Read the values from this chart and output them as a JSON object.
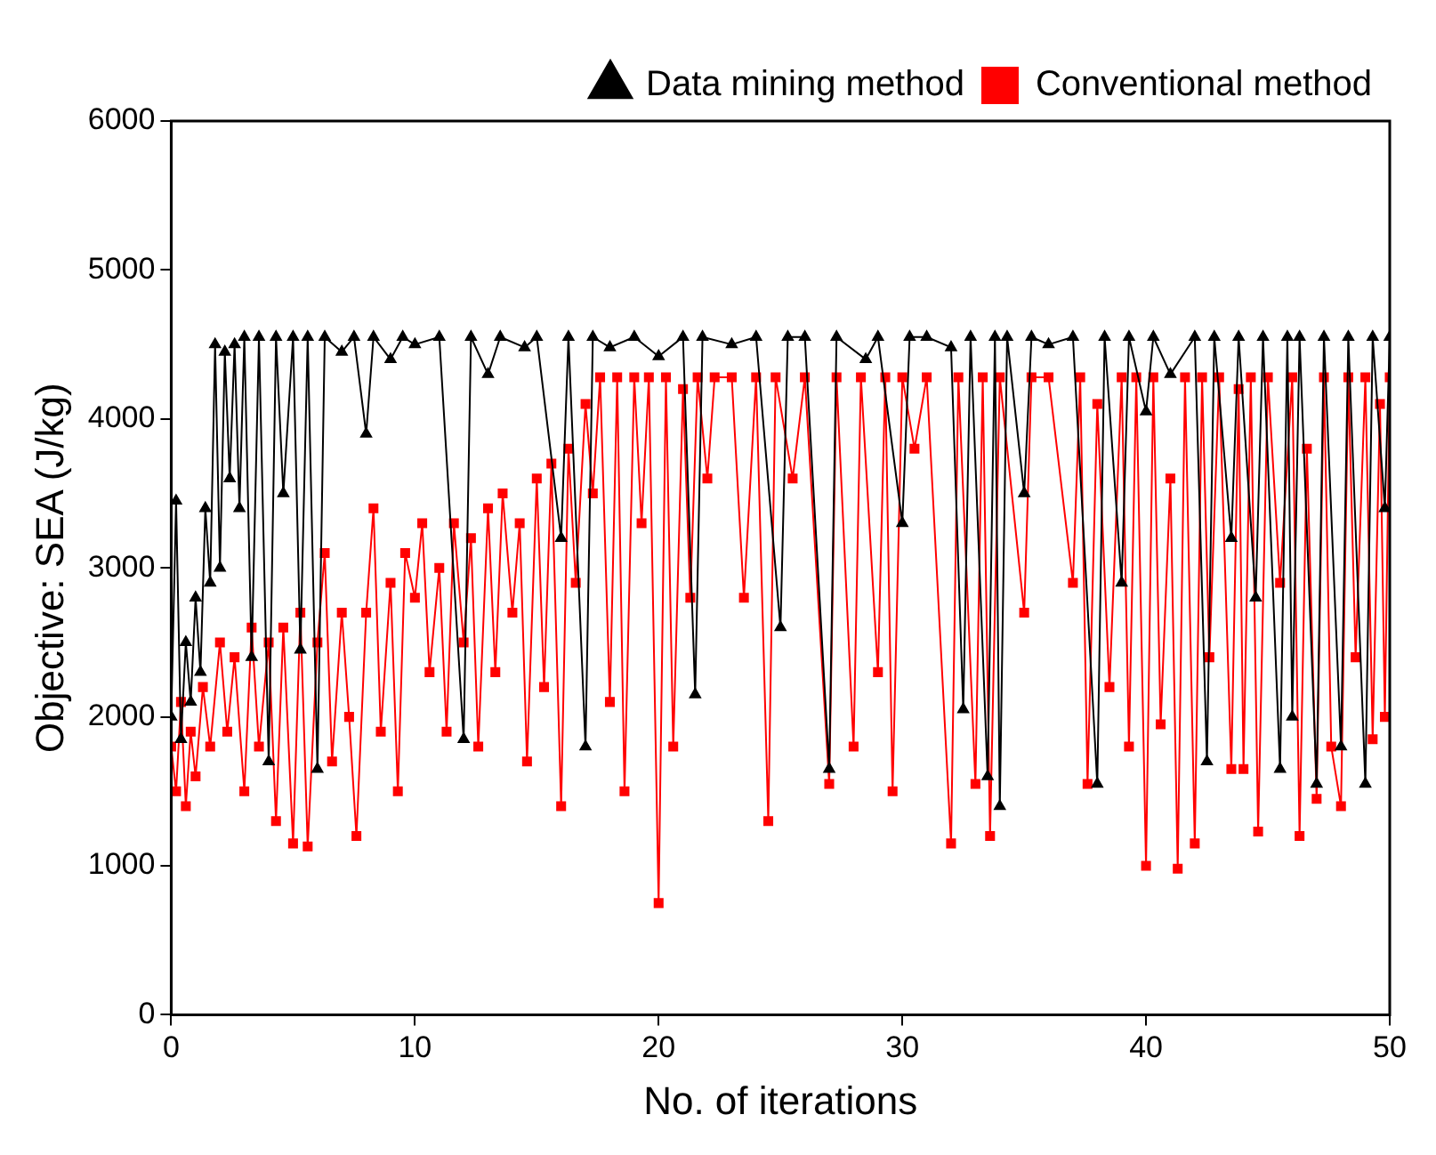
{
  "chart_data": {
    "type": "line",
    "xlabel": "No. of iterations",
    "ylabel": "Objective: SEA (J/kg)",
    "xlim": [
      0,
      50
    ],
    "xticks": [
      0,
      10,
      20,
      30,
      40,
      50
    ],
    "ylim": [
      0,
      6000
    ],
    "yticks": [
      0,
      1000,
      2000,
      3000,
      4000,
      5000,
      6000
    ],
    "grid": false,
    "legend": "top right",
    "line_style": "solid",
    "series": [
      {
        "name": "Data mining method",
        "color": "#000000",
        "marker": "triangle",
        "x": [
          0,
          0.2,
          0.4,
          0.6,
          0.8,
          1.0,
          1.2,
          1.4,
          1.6,
          1.8,
          2.0,
          2.2,
          2.4,
          2.6,
          2.8,
          3.0,
          3.3,
          3.6,
          4.0,
          4.3,
          4.6,
          5.0,
          5.3,
          5.6,
          6.0,
          6.3,
          7.0,
          7.5,
          8.0,
          8.3,
          9.0,
          9.5,
          10.0,
          11.0,
          12.0,
          12.3,
          13.0,
          13.5,
          14.5,
          15.0,
          16.0,
          16.3,
          17.0,
          17.3,
          18.0,
          19.0,
          20.0,
          21.0,
          21.5,
          21.8,
          23.0,
          24.0,
          25.0,
          25.3,
          26.0,
          27.0,
          27.3,
          28.5,
          29.0,
          30.0,
          30.3,
          31.0,
          32.0,
          32.5,
          32.8,
          33.5,
          33.8,
          34.0,
          34.3,
          35.0,
          35.3,
          36.0,
          37.0,
          38.0,
          38.3,
          39.0,
          39.3,
          40.0,
          40.3,
          41.0,
          42.0,
          42.5,
          42.8,
          43.5,
          43.8,
          44.5,
          44.8,
          45.5,
          45.8,
          46.0,
          46.3,
          47.0,
          47.3,
          48.0,
          48.3,
          49.0,
          49.3,
          49.8,
          50
        ],
        "values": [
          2000,
          3450,
          1850,
          2500,
          2100,
          2800,
          2300,
          3400,
          2900,
          4500,
          3000,
          4450,
          3600,
          4500,
          3400,
          4550,
          2400,
          4550,
          1700,
          4550,
          3500,
          4550,
          2450,
          4550,
          1650,
          4550,
          4450,
          4550,
          3900,
          4550,
          4400,
          4550,
          4500,
          4550,
          1850,
          4550,
          4300,
          4550,
          4480,
          4550,
          3200,
          4550,
          1800,
          4550,
          4480,
          4550,
          4420,
          4550,
          2150,
          4550,
          4500,
          4550,
          2600,
          4550,
          4550,
          1650,
          4550,
          4400,
          4550,
          3300,
          4550,
          4550,
          4480,
          2050,
          4550,
          1600,
          4550,
          1400,
          4550,
          3500,
          4550,
          4500,
          4550,
          1550,
          4550,
          2900,
          4550,
          4050,
          4550,
          4300,
          4550,
          1700,
          4550,
          3200,
          4550,
          2800,
          4550,
          1650,
          4550,
          2000,
          4550,
          1550,
          4550,
          1800,
          4550,
          1550,
          4550,
          3400,
          4550
        ]
      },
      {
        "name": "Conventional method",
        "color": "#ff0000",
        "marker": "square",
        "x": [
          0,
          0.2,
          0.4,
          0.6,
          0.8,
          1.0,
          1.3,
          1.6,
          2.0,
          2.3,
          2.6,
          3.0,
          3.3,
          3.6,
          4.0,
          4.3,
          4.6,
          5.0,
          5.3,
          5.6,
          6.0,
          6.3,
          6.6,
          7.0,
          7.3,
          7.6,
          8.0,
          8.3,
          8.6,
          9.0,
          9.3,
          9.6,
          10.0,
          10.3,
          10.6,
          11.0,
          11.3,
          11.6,
          12.0,
          12.3,
          12.6,
          13.0,
          13.3,
          13.6,
          14.0,
          14.3,
          14.6,
          15.0,
          15.3,
          15.6,
          16.0,
          16.3,
          16.6,
          17.0,
          17.3,
          17.6,
          18.0,
          18.3,
          18.6,
          19.0,
          19.3,
          19.6,
          20.0,
          20.3,
          20.6,
          21.0,
          21.3,
          21.6,
          22.0,
          22.3,
          23.0,
          23.5,
          24.0,
          24.5,
          24.8,
          25.5,
          26.0,
          27.0,
          27.3,
          28.0,
          28.3,
          29.0,
          29.3,
          29.6,
          30.0,
          30.5,
          31.0,
          32.0,
          32.3,
          33.0,
          33.3,
          33.6,
          34.0,
          35.0,
          35.3,
          36.0,
          37.0,
          37.3,
          37.6,
          38.0,
          38.5,
          39.0,
          39.3,
          39.6,
          40.0,
          40.3,
          40.6,
          41.0,
          41.3,
          41.6,
          42.0,
          42.3,
          42.6,
          43.0,
          43.5,
          43.8,
          44.0,
          44.3,
          44.6,
          45.0,
          45.5,
          46.0,
          46.3,
          46.6,
          47.0,
          47.3,
          47.6,
          48.0,
          48.3,
          48.6,
          49.0,
          49.3,
          49.6,
          49.8,
          50
        ],
        "values": [
          1800,
          1500,
          2100,
          1400,
          1900,
          1600,
          2200,
          1800,
          2500,
          1900,
          2400,
          1500,
          2600,
          1800,
          2500,
          1300,
          2600,
          1150,
          2700,
          1130,
          2500,
          3100,
          1700,
          2700,
          2000,
          1200,
          2700,
          3400,
          1900,
          2900,
          1500,
          3100,
          2800,
          3300,
          2300,
          3000,
          1900,
          3300,
          2500,
          3200,
          1800,
          3400,
          2300,
          3500,
          2700,
          3300,
          1700,
          3600,
          2200,
          3700,
          1400,
          3800,
          2900,
          4100,
          3500,
          4280,
          2100,
          4280,
          1500,
          4280,
          3300,
          4280,
          750,
          4280,
          1800,
          4200,
          2800,
          4280,
          3600,
          4280,
          4280,
          2800,
          4280,
          1300,
          4280,
          3600,
          4280,
          1550,
          4280,
          1800,
          4280,
          2300,
          4280,
          1500,
          4280,
          3800,
          4280,
          1150,
          4280,
          1550,
          4280,
          1200,
          4280,
          2700,
          4280,
          4280,
          2900,
          4280,
          1550,
          4100,
          2200,
          4280,
          1800,
          4280,
          1000,
          4280,
          1950,
          3600,
          980,
          4280,
          1150,
          4280,
          2400,
          4280,
          1650,
          4200,
          1650,
          4280,
          1230,
          4280,
          2900,
          4280,
          1200,
          3800,
          1450,
          4280,
          1800,
          1400,
          4280,
          2400,
          4280,
          1850,
          4100,
          2000,
          4280
        ]
      }
    ]
  }
}
